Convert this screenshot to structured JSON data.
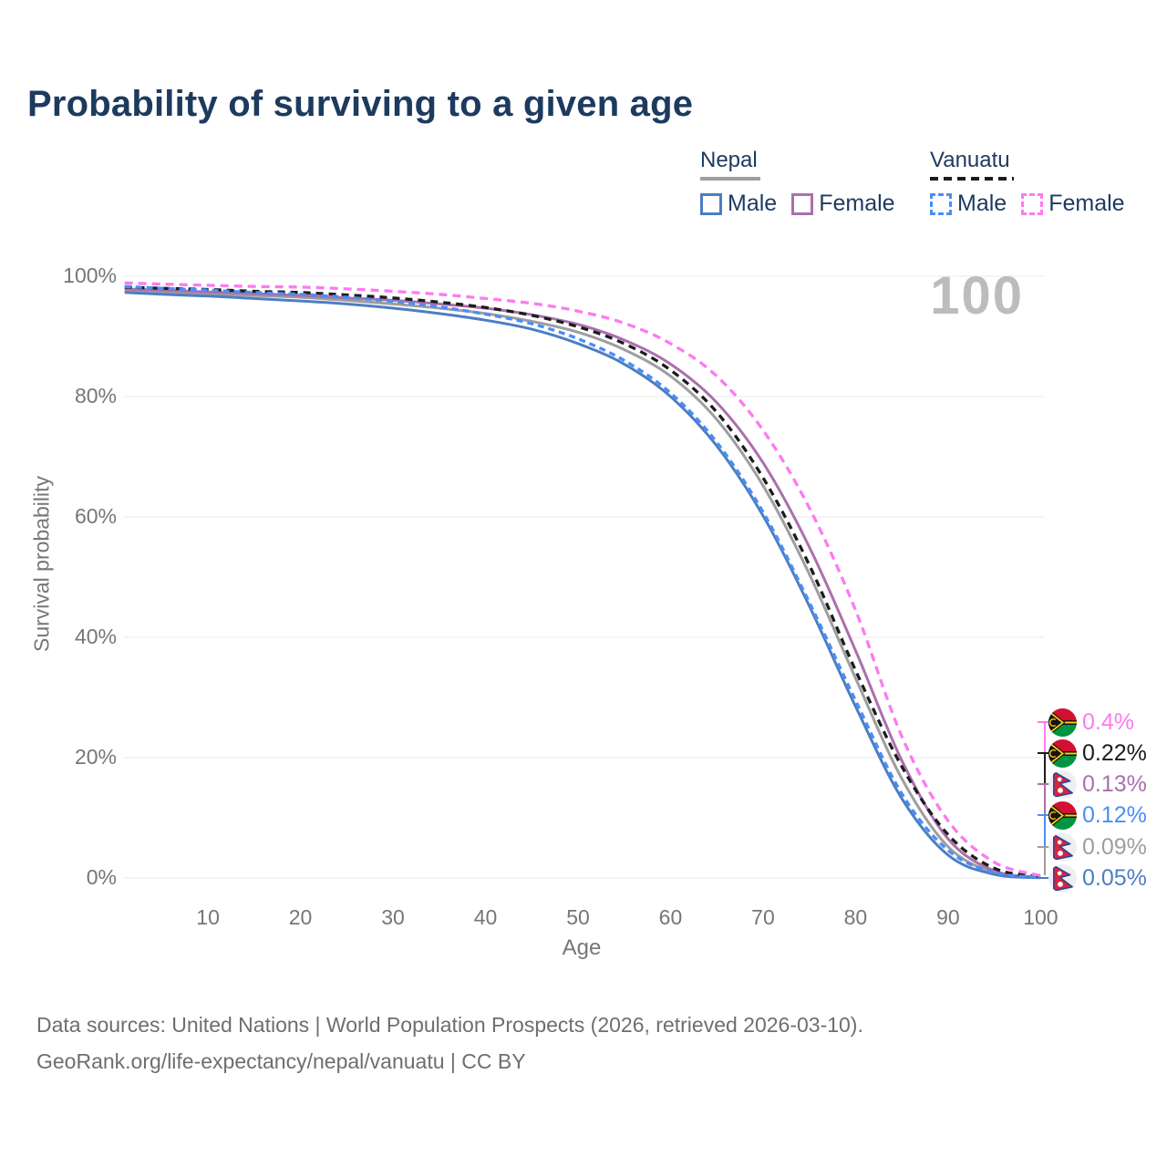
{
  "title": "Probability of surviving to a given age",
  "watermark": "100",
  "legend": {
    "nepal": {
      "title": "Nepal",
      "male_label": "Male",
      "female_label": "Female"
    },
    "vanuatu": {
      "title": "Vanuatu",
      "male_label": "Male",
      "female_label": "Female"
    }
  },
  "colors": {
    "title_text": "#1d3a5f",
    "axis_text": "#767676",
    "grid": "#e8e8e8",
    "watermark": "#bcbcbc",
    "footer_text": "#6e6e6e",
    "nepal_total": "#9e9e9e",
    "nepal_male": "#4c7ec2",
    "nepal_female": "#ab6fae",
    "vanuatu_total": "#1c1c1c",
    "vanuatu_male": "#4b8df8",
    "vanuatu_female": "#fc7af0"
  },
  "chart_data": {
    "type": "line",
    "title": "Probability of surviving to a given age",
    "xlabel": "Age",
    "ylabel": "Survival probability",
    "xlim": [
      0,
      100
    ],
    "ylim": [
      0,
      100
    ],
    "xticks": [
      10,
      20,
      30,
      40,
      50,
      60,
      70,
      80,
      90,
      100
    ],
    "ytick_labels": [
      "0%",
      "20%",
      "40%",
      "60%",
      "80%",
      "100%"
    ],
    "grid": "horizontal",
    "x": [
      1,
      5,
      10,
      15,
      20,
      25,
      30,
      35,
      40,
      45,
      50,
      55,
      60,
      65,
      70,
      75,
      80,
      85,
      90,
      95,
      100
    ],
    "series": [
      {
        "name": "Nepal",
        "color": "#9e9e9e",
        "dash": null,
        "end_value": "0.09%",
        "values": [
          97.7,
          97.4,
          97.1,
          96.8,
          96.5,
          96.0,
          95.4,
          94.7,
          93.8,
          92.5,
          90.7,
          87.8,
          83.4,
          76.2,
          65.2,
          50.5,
          33.2,
          16.5,
          5.2,
          0.9,
          0.09
        ]
      },
      {
        "name": "Nepal Female",
        "color": "#ab6fae",
        "dash": null,
        "end_value": "0.13%",
        "values": [
          97.9,
          97.7,
          97.4,
          97.1,
          96.8,
          96.4,
          96.0,
          95.4,
          94.7,
          93.6,
          92.0,
          89.4,
          85.4,
          79.0,
          69.0,
          55.0,
          37.8,
          19.5,
          6.5,
          1.2,
          0.13
        ]
      },
      {
        "name": "Nepal Male",
        "color": "#4c7ec2",
        "dash": null,
        "end_value": "0.05%",
        "values": [
          97.3,
          97.0,
          96.7,
          96.3,
          95.9,
          95.4,
          94.7,
          93.8,
          92.7,
          91.2,
          88.8,
          85.4,
          80.0,
          71.8,
          60.2,
          45.2,
          28.5,
          13.2,
          3.8,
          0.6,
          0.05
        ]
      },
      {
        "name": "Vanuatu",
        "color": "#1c1c1c",
        "dash": "8 6",
        "end_value": "0.22%",
        "values": [
          98.2,
          98.0,
          97.8,
          97.5,
          97.3,
          96.9,
          96.4,
          95.7,
          94.8,
          93.5,
          91.6,
          88.8,
          84.4,
          77.4,
          66.5,
          52.0,
          34.5,
          18.5,
          7.2,
          1.6,
          0.22
        ]
      },
      {
        "name": "Vanuatu Male",
        "color": "#4b8df8",
        "dash": "7 5",
        "end_value": "0.12%",
        "values": [
          98.3,
          98.0,
          97.7,
          97.3,
          97.0,
          96.5,
          95.8,
          94.9,
          93.7,
          92.1,
          89.6,
          86.0,
          80.6,
          72.4,
          60.8,
          45.8,
          29.5,
          14.0,
          4.6,
          0.9,
          0.12
        ]
      },
      {
        "name": "Vanuatu Female",
        "color": "#fc7af0",
        "dash": "9 6",
        "end_value": "0.4%",
        "values": [
          98.9,
          98.7,
          98.5,
          98.3,
          98.2,
          97.9,
          97.5,
          97.0,
          96.3,
          95.5,
          94.2,
          92.2,
          88.8,
          83.4,
          74.4,
          61.5,
          44.5,
          23.5,
          9.5,
          2.6,
          0.4
        ]
      }
    ]
  },
  "end_labels": [
    {
      "value": "0.4%",
      "flag": "vanuatu",
      "series": "Vanuatu Female",
      "color": "#fc7af0"
    },
    {
      "value": "0.22%",
      "flag": "vanuatu",
      "series": "Vanuatu",
      "color": "#1c1c1c"
    },
    {
      "value": "0.13%",
      "flag": "nepal",
      "series": "Nepal Female",
      "color": "#ab6fae"
    },
    {
      "value": "0.12%",
      "flag": "vanuatu",
      "series": "Vanuatu Male",
      "color": "#4b8df8"
    },
    {
      "value": "0.09%",
      "flag": "nepal",
      "series": "Nepal",
      "color": "#9e9e9e"
    },
    {
      "value": "0.05%",
      "flag": "nepal",
      "series": "Nepal Male",
      "color": "#4c7ec2"
    }
  ],
  "footer": {
    "line1": "Data sources: United Nations | World Population Prospects (2026, retrieved 2026-03-10).",
    "line2": "GeoRank.org/life-expectancy/nepal/vanuatu | CC BY"
  }
}
